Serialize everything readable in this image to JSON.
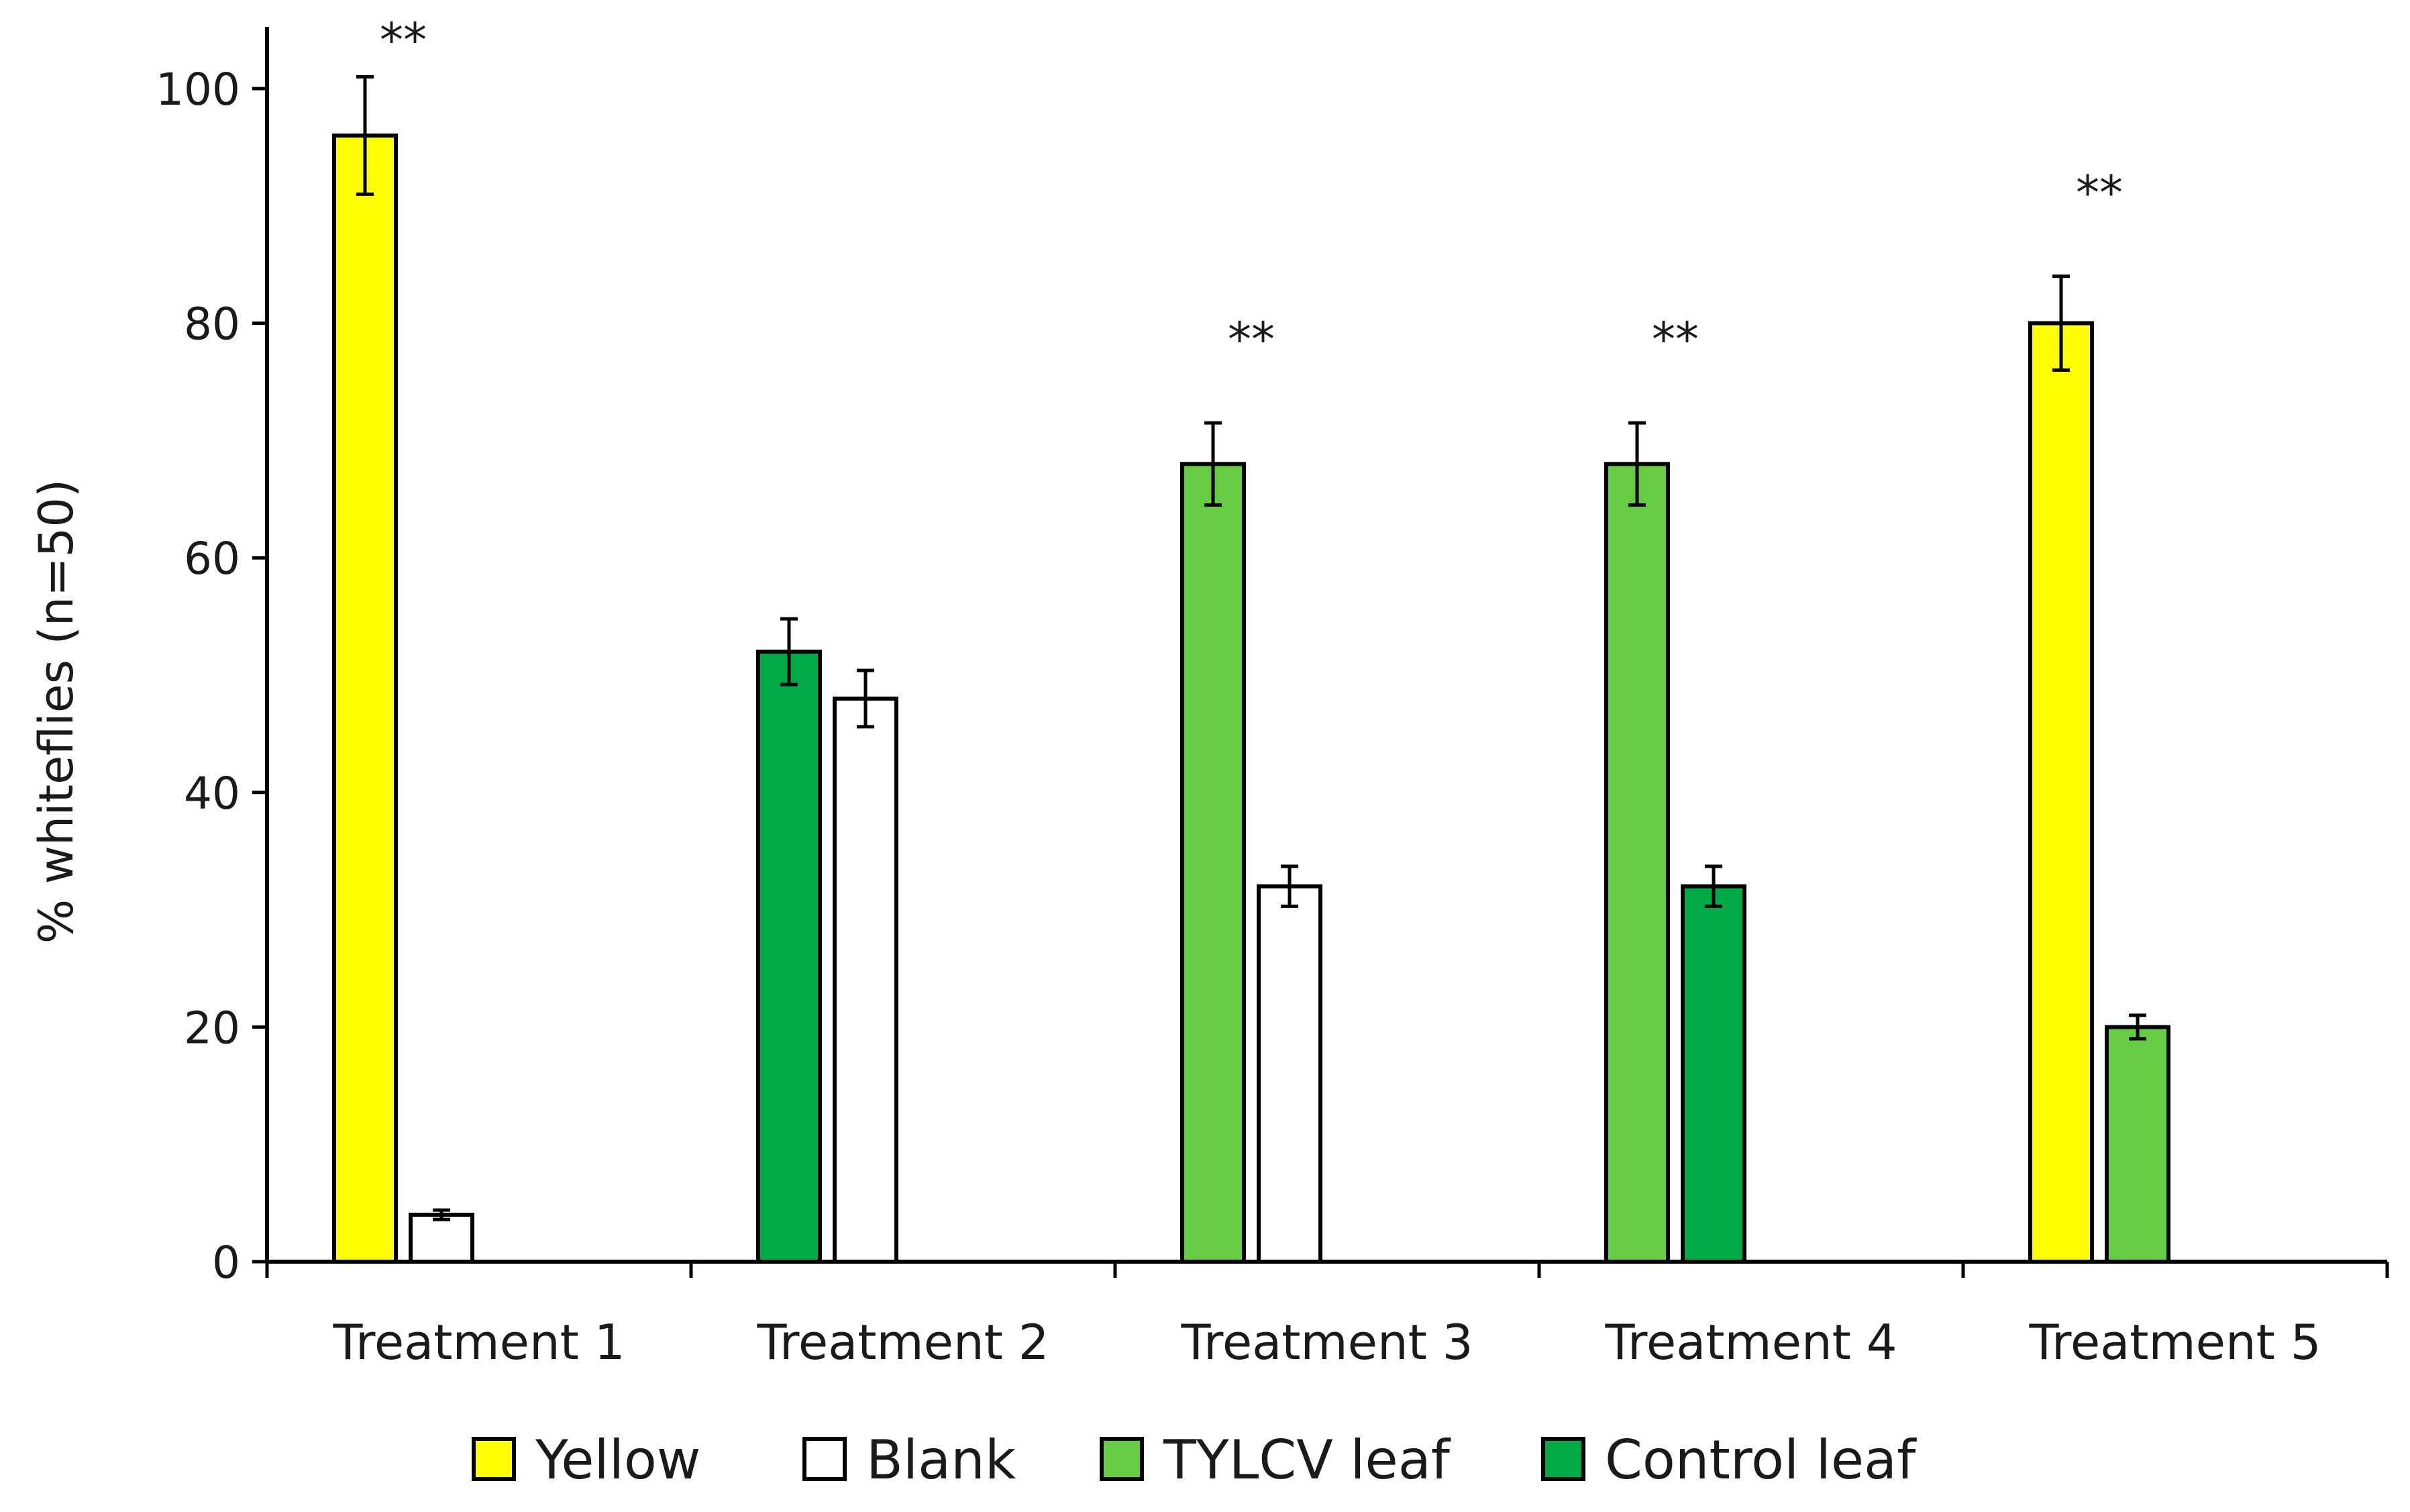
{
  "chart_data": {
    "type": "bar",
    "title": "",
    "xlabel": "",
    "ylabel": "% whiteflies (n=50)",
    "ylim": [
      0,
      100
    ],
    "yticks": [
      0,
      20,
      40,
      60,
      80,
      100
    ],
    "grid": false,
    "legend_position": "bottom",
    "categories": [
      "Treatment 1",
      "Treatment 2",
      "Treatment 3",
      "Treatment 4",
      "Treatment 5"
    ],
    "legend": [
      {
        "name": "Yellow",
        "color": "#ffff00"
      },
      {
        "name": "Blank",
        "color": "#ffffff"
      },
      {
        "name": "TYLCV leaf",
        "color": "#66cc44"
      },
      {
        "name": "Control leaf",
        "color": "#00aa44"
      }
    ],
    "groups": [
      {
        "category": "Treatment 1",
        "significance": "**",
        "bars": [
          {
            "series": "Yellow",
            "value": 96,
            "error": 5
          },
          {
            "series": "Blank",
            "value": 4,
            "error": 0.4
          }
        ]
      },
      {
        "category": "Treatment 2",
        "significance": "",
        "bars": [
          {
            "series": "Control leaf",
            "value": 52,
            "error": 2.8
          },
          {
            "series": "Blank",
            "value": 48,
            "error": 2.4
          }
        ]
      },
      {
        "category": "Treatment 3",
        "significance": "**",
        "bars": [
          {
            "series": "TYLCV leaf",
            "value": 68,
            "error": 3.5
          },
          {
            "series": "Blank",
            "value": 32,
            "error": 1.7
          }
        ]
      },
      {
        "category": "Treatment 4",
        "significance": "**",
        "bars": [
          {
            "series": "TYLCV leaf",
            "value": 68,
            "error": 3.5
          },
          {
            "series": "Control leaf",
            "value": 32,
            "error": 1.7
          }
        ]
      },
      {
        "category": "Treatment 5",
        "significance": "**",
        "bars": [
          {
            "series": "Yellow",
            "value": 80,
            "error": 4
          },
          {
            "series": "TYLCV leaf",
            "value": 20,
            "error": 1
          }
        ]
      }
    ]
  }
}
